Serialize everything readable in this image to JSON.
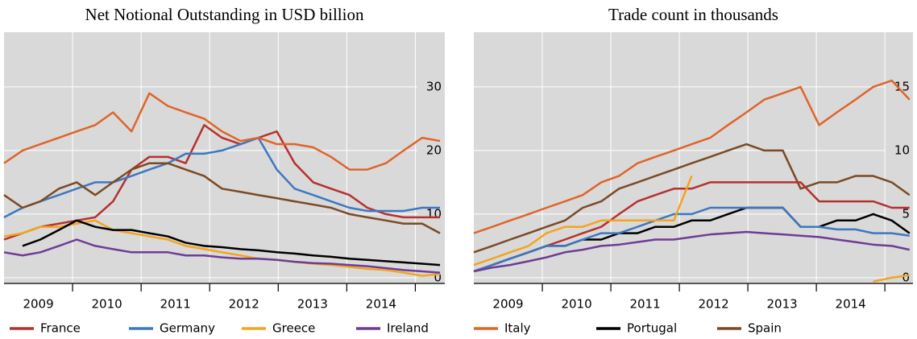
{
  "chart_data": [
    {
      "type": "line",
      "title": "Net Notional Outstanding in USD billion",
      "x": [
        2009,
        2009.27,
        2009.53,
        2009.8,
        2010.06,
        2010.33,
        2010.59,
        2010.86,
        2011.12,
        2011.39,
        2011.65,
        2011.92,
        2012.18,
        2012.45,
        2012.71,
        2012.98,
        2013.24,
        2013.51,
        2013.77,
        2014.04,
        2014.3,
        2014.57,
        2014.83,
        2015.1,
        2015.36
      ],
      "xlim": [
        2009,
        2015.43
      ],
      "xticks": [
        2010,
        2011,
        2012,
        2013,
        2014,
        2015
      ],
      "xtick_labels": [
        {
          "value": 2009.5,
          "label": "2009"
        },
        {
          "value": 2010.5,
          "label": "2010"
        },
        {
          "value": 2011.5,
          "label": "2011"
        },
        {
          "value": 2012.5,
          "label": "2012"
        },
        {
          "value": 2013.5,
          "label": "2013"
        },
        {
          "value": 2014.5,
          "label": "2014"
        }
      ],
      "ylim": [
        -0.9,
        38.6
      ],
      "yticks": [
        0,
        10,
        20,
        30
      ],
      "grid": true,
      "series": [
        {
          "name": "France",
          "color": "#b5312e",
          "values": [
            6,
            7,
            8,
            8.5,
            9,
            9.5,
            12,
            17,
            19,
            19,
            18,
            24,
            22,
            21,
            22,
            23,
            18,
            15,
            14,
            13,
            11,
            10,
            9.5,
            9.5,
            9.5
          ]
        },
        {
          "name": "Germany",
          "color": "#3c78c0",
          "values": [
            9.5,
            11,
            12,
            13,
            14,
            15,
            15,
            16,
            17,
            18,
            19.5,
            19.5,
            20,
            21,
            22,
            17,
            14,
            13,
            12,
            11,
            10.5,
            10.5,
            10.5,
            11,
            11
          ]
        },
        {
          "name": "Greece",
          "color": "#f2a51f",
          "values": [
            6.5,
            7,
            8,
            8,
            8.5,
            9,
            7.5,
            7,
            6.5,
            6,
            5,
            4.5,
            4,
            3.5,
            3,
            2.8,
            2.5,
            2.2,
            2,
            1.7,
            1.4,
            1.2,
            0.8,
            0.3,
            0.6
          ]
        },
        {
          "name": "Ireland",
          "color": "#6e3c96",
          "values": [
            4,
            3.5,
            4,
            5,
            6,
            5,
            4.5,
            4,
            4,
            4,
            3.5,
            3.5,
            3.2,
            3,
            3,
            2.8,
            2.5,
            2.3,
            2.2,
            2,
            1.8,
            1.5,
            1.2,
            1,
            0.8
          ]
        },
        {
          "color": "#e0642a",
          "values": [
            18,
            20,
            21,
            22,
            23,
            24,
            26,
            23,
            29,
            27,
            26,
            25,
            23,
            21.5,
            22,
            21,
            21,
            20.5,
            19,
            17,
            17,
            18,
            20,
            22,
            21.5
          ]
        },
        {
          "color": "#000000",
          "values": [
            null,
            5,
            6,
            7.5,
            9,
            8,
            7.5,
            7.5,
            7,
            6.5,
            5.5,
            5,
            4.8,
            4.5,
            4.3,
            4,
            3.8,
            3.5,
            3.3,
            3,
            2.8,
            2.6,
            2.4,
            2.2,
            2
          ]
        },
        {
          "color": "#7b4a24",
          "values": [
            13,
            11,
            12,
            14,
            15,
            13,
            15,
            17,
            18,
            18,
            17,
            16,
            14,
            13.5,
            13,
            12.5,
            12,
            11.5,
            11,
            10,
            9.5,
            9,
            8.5,
            8.5,
            7
          ]
        }
      ]
    },
    {
      "type": "line",
      "title": "Trade count in thousands",
      "x": [
        2009,
        2009.27,
        2009.53,
        2009.8,
        2010.06,
        2010.33,
        2010.59,
        2010.86,
        2011.12,
        2011.39,
        2011.65,
        2011.92,
        2012.18,
        2012.45,
        2012.71,
        2012.98,
        2013.24,
        2013.51,
        2013.77,
        2014.04,
        2014.3,
        2014.57,
        2014.83,
        2015.1,
        2015.36
      ],
      "xlim": [
        2009,
        2015.41
      ],
      "xticks": [
        2010,
        2011,
        2012,
        2013,
        2014,
        2015
      ],
      "xtick_labels": [
        {
          "value": 2009.5,
          "label": "2009"
        },
        {
          "value": 2010.5,
          "label": "2010"
        },
        {
          "value": 2011.5,
          "label": "2011"
        },
        {
          "value": 2012.5,
          "label": "2012"
        },
        {
          "value": 2013.5,
          "label": "2013"
        },
        {
          "value": 2014.5,
          "label": "2014"
        }
      ],
      "ylim": [
        -0.45,
        19.3
      ],
      "yticks": [
        0,
        5,
        10,
        15
      ],
      "grid": true,
      "series": [
        {
          "name": "Italy",
          "color": "#e0642a",
          "values": [
            3.5,
            4,
            4.5,
            5,
            5.5,
            6,
            6.5,
            7.5,
            8,
            9,
            9.5,
            10,
            10.5,
            11,
            12,
            13,
            14,
            14.5,
            15,
            12,
            13,
            14,
            15,
            15.5,
            14
          ]
        },
        {
          "name": "Portugal",
          "color": "#000000",
          "values": [
            null,
            1,
            1.5,
            2,
            2.5,
            2.5,
            3,
            3,
            3.5,
            3.5,
            4,
            4,
            4.5,
            4.5,
            5,
            5.5,
            5.5,
            5.5,
            4,
            4,
            4.5,
            4.5,
            5,
            4.5,
            3.5
          ]
        },
        {
          "name": "Spain",
          "color": "#7b4a24",
          "values": [
            2,
            2.5,
            3,
            3.5,
            4,
            4.5,
            5.5,
            6,
            7,
            7.5,
            8,
            8.5,
            9,
            9.5,
            10,
            10.5,
            10,
            10,
            7,
            7.5,
            7.5,
            8,
            8,
            7.5,
            6.5
          ]
        },
        {
          "color": "#b5312e",
          "values": [
            0.5,
            1,
            1.5,
            2,
            2.5,
            3,
            3.5,
            4,
            5,
            6,
            6.5,
            7,
            7,
            7.5,
            7.5,
            7.5,
            7.5,
            7.5,
            7.5,
            6,
            6,
            6,
            6,
            5.5,
            5.5
          ]
        },
        {
          "color": "#3c78c0",
          "values": [
            0.5,
            1,
            1.5,
            2,
            2.5,
            2.5,
            3,
            3.5,
            3.5,
            4,
            4.5,
            5,
            5,
            5.5,
            5.5,
            5.5,
            5.5,
            5.5,
            4,
            4,
            3.8,
            3.8,
            3.5,
            3.5,
            3.3
          ]
        },
        {
          "color": "#f2a51f",
          "values": [
            1,
            1.5,
            2,
            2.5,
            3.5,
            4,
            4,
            4.5,
            4.5,
            4.5,
            4.5,
            4.5,
            8,
            null,
            null,
            null,
            null,
            null,
            null,
            null,
            null,
            null,
            -0.3,
            0,
            0.2
          ]
        },
        {
          "color": "#6e3c96",
          "values": [
            0.5,
            0.8,
            1,
            1.3,
            1.6,
            2,
            2.2,
            2.5,
            2.6,
            2.8,
            3,
            3,
            3.2,
            3.4,
            3.5,
            3.6,
            3.5,
            3.4,
            3.3,
            3.2,
            3,
            2.8,
            2.6,
            2.5,
            2.2
          ]
        }
      ]
    }
  ]
}
